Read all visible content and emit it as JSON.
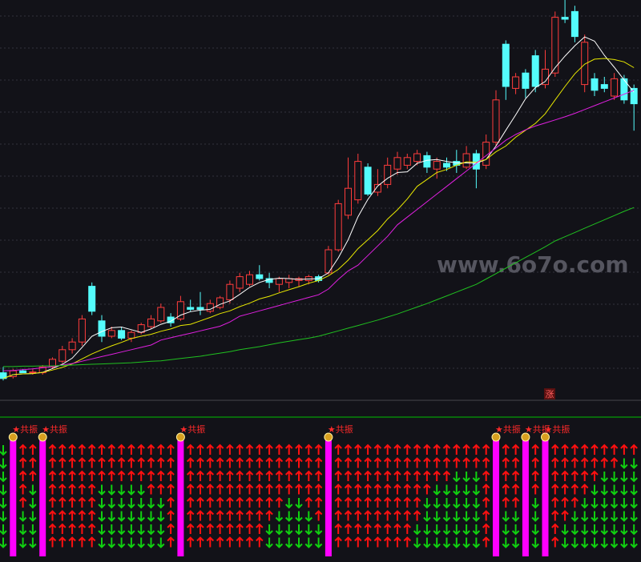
{
  "watermark": "www.6o7o.com",
  "chart_data": {
    "type": "candlestick",
    "ylim": [
      0,
      100
    ],
    "up_color": "#ff3c3c",
    "down_color": "#54fcfc",
    "open": [
      3,
      2,
      3.5,
      3,
      3,
      4.5,
      6,
      9,
      11,
      25.5,
      16.5,
      12.5,
      14,
      12,
      13.5,
      15,
      16.5,
      17.5,
      17,
      20,
      20,
      19,
      20,
      22,
      25,
      26,
      28.5,
      27.5,
      26,
      26.5,
      27,
      27,
      28,
      29,
      35,
      44,
      48,
      56.5,
      50,
      52,
      56,
      57,
      58,
      59.5,
      56,
      57.5,
      58,
      56.5,
      60,
      57,
      63,
      88.5,
      77,
      81,
      85.5,
      78,
      81,
      95.5,
      97,
      78,
      79.5,
      78,
      75,
      79.5,
      77
    ],
    "high": [
      4.5,
      4,
      4,
      4,
      5,
      7,
      10,
      12,
      18,
      26.5,
      18,
      15,
      15,
      14,
      16,
      18,
      21,
      18.5,
      23,
      22,
      24,
      22,
      23,
      27,
      29,
      29.5,
      31,
      29,
      28,
      28.5,
      28,
      28.5,
      28.5,
      36,
      48,
      59,
      60,
      57.5,
      56,
      59,
      60.5,
      60,
      61,
      60.5,
      59,
      59,
      61,
      62,
      61,
      65,
      76.5,
      89.5,
      81,
      82,
      87,
      87,
      97,
      100,
      98.5,
      91,
      81,
      80,
      81,
      80.5,
      78
    ],
    "low": [
      1,
      1.5,
      3,
      2.5,
      2.5,
      4,
      5.5,
      8,
      10,
      18,
      11,
      12,
      11.5,
      11,
      13,
      14.5,
      16,
      15,
      16.5,
      19,
      18,
      18.5,
      19.5,
      21,
      24,
      25.5,
      27,
      25,
      24,
      25,
      25.5,
      26,
      26.5,
      28.5,
      34.5,
      43,
      47,
      49,
      49,
      51,
      54.5,
      56,
      57,
      55,
      53.5,
      55.5,
      55,
      56,
      51,
      56,
      62,
      74,
      75.5,
      74.5,
      76,
      77,
      80,
      94,
      89,
      76,
      75,
      76,
      74,
      73,
      66
    ],
    "close": [
      1.5,
      3.5,
      3,
      3.2,
      4.5,
      6.5,
      9,
      11,
      17,
      19,
      12.5,
      14,
      12,
      13.5,
      15.5,
      17,
      20,
      16,
      21.5,
      19.5,
      19.5,
      21,
      22.5,
      26,
      28,
      28.5,
      27.5,
      26.5,
      27.5,
      27.5,
      27.5,
      28,
      27,
      35,
      47,
      51,
      58,
      49.5,
      52,
      57,
      59,
      59,
      60,
      56.5,
      58,
      56.5,
      57,
      60,
      56,
      63,
      74,
      77.5,
      80,
      77,
      77.5,
      82,
      95.5,
      95,
      90.5,
      89,
      76.5,
      77,
      79.5,
      74,
      73
    ],
    "series": [
      {
        "color": "#ffffff",
        "values": [
          1.5,
          2.5,
          2.7,
          2.8,
          3.1,
          4.1,
          5.2,
          6.8,
          9.6,
          12.5,
          13.7,
          14.7,
          14.9,
          14.2,
          13.5,
          14.4,
          15.6,
          16.4,
          18,
          18.9,
          19.3,
          19.5,
          20.8,
          21.7,
          23.4,
          25.2,
          26.5,
          27.3,
          27.6,
          27.5,
          27.3,
          27.4,
          27.5,
          29,
          32.9,
          37.6,
          43.6,
          48.1,
          51.6,
          53.6,
          55.1,
          55.3,
          57.5,
          58.3,
          58.5,
          58,
          57.6,
          57.6,
          57.5,
          58.5,
          62,
          66.1,
          70.1,
          74.3,
          77.2,
          78.8,
          82.4,
          85.4,
          88.1,
          90.4,
          89.3,
          85.6,
          82.5,
          79.2,
          76
        ]
      },
      {
        "color": "#e8e800",
        "values": [
          1.5,
          2.5,
          2.7,
          2.8,
          3.1,
          3.7,
          4.4,
          5.3,
          6.6,
          7.9,
          9,
          10,
          10.9,
          11.9,
          12.5,
          13,
          13.8,
          14.4,
          15.3,
          15.6,
          16.5,
          17.4,
          18.4,
          19.1,
          20.2,
          21.1,
          22.2,
          22.9,
          23.8,
          24.6,
          25.4,
          26.3,
          27,
          28.2,
          29.9,
          32.3,
          35.3,
          37.6,
          40,
          43,
          45.4,
          48.2,
          51.5,
          53.3,
          55.1,
          55.9,
          57,
          57.9,
          57.8,
          58.5,
          60.5,
          62,
          64.3,
          66.1,
          67.9,
          70.4,
          74,
          77.5,
          80.8,
          83.3,
          84.6,
          84.8,
          84.5,
          83.9,
          82.4
        ]
      },
      {
        "color": "#e020e0",
        "values": [
          3.5,
          3.6,
          3.8,
          4,
          4.3,
          4.6,
          5,
          5.4,
          6,
          6.6,
          7.2,
          7.8,
          8.4,
          9,
          9.6,
          10.2,
          11.5,
          12.1,
          12.7,
          13.3,
          13.9,
          14.5,
          15.1,
          16.2,
          17.7,
          18.4,
          19.1,
          19.8,
          20.5,
          21.2,
          21.9,
          22.6,
          23.3,
          24.8,
          27.3,
          29.5,
          31,
          33.5,
          36,
          38.5,
          41.5,
          43.5,
          45.5,
          47.5,
          49.5,
          51.5,
          53.5,
          55.5,
          57.5,
          59.5,
          61.5,
          63.5,
          65,
          66.2,
          67.2,
          68,
          68.8,
          69.6,
          70.5,
          71.5,
          72.5,
          73.5,
          74.5,
          75.5,
          76.5
        ]
      },
      {
        "color": "#20c020",
        "values": [
          4.6,
          4.6,
          4.7,
          4.7,
          4.8,
          4.8,
          4.9,
          5,
          5.1,
          5.2,
          5.3,
          5.4,
          5.5,
          5.6,
          5.8,
          6,
          6.1,
          6.4,
          6.7,
          7,
          7.3,
          7.7,
          8.1,
          8.5,
          9,
          9.4,
          9.8,
          10.3,
          10.8,
          11.2,
          11.6,
          12,
          12.5,
          13.2,
          13.9,
          14.6,
          15.3,
          16,
          16.7,
          17.5,
          18.3,
          19.2,
          20.1,
          21,
          22,
          23,
          24,
          25,
          26,
          27.4,
          28.8,
          30.2,
          31.6,
          33,
          34.4,
          35.8,
          37.3,
          38.4,
          39.5,
          40.6,
          41.7,
          42.8,
          43.9,
          45,
          46
        ]
      }
    ],
    "marker": "涨",
    "signals": [
      null,
      "★共振",
      null,
      null,
      "★共振",
      null,
      null,
      null,
      null,
      null,
      null,
      null,
      null,
      null,
      null,
      null,
      null,
      null,
      "★共振",
      null,
      null,
      null,
      null,
      null,
      null,
      null,
      null,
      null,
      null,
      null,
      null,
      null,
      null,
      "★共振",
      null,
      null,
      null,
      null,
      null,
      null,
      null,
      null,
      null,
      null,
      null,
      null,
      null,
      null,
      null,
      null,
      "★共振",
      null,
      null,
      "★共振",
      null,
      "★共振",
      null,
      null,
      null,
      null,
      null,
      null,
      null,
      null,
      null
    ]
  }
}
